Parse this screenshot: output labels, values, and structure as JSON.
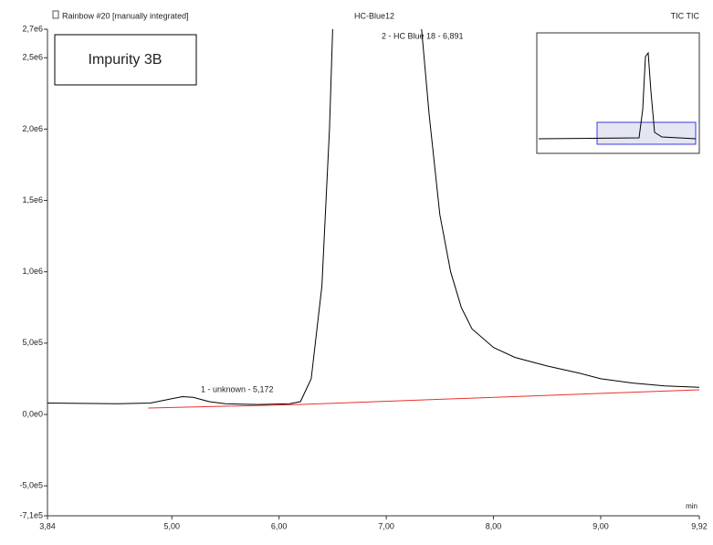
{
  "chart_data": {
    "type": "line",
    "title": "HC-Blue12",
    "header_left": "Rainbow #20 [manually integrated]",
    "header_right": "TIC TIC",
    "sample_label": "Impurity 3B",
    "x_unit": "min",
    "annotations": [
      "1 - unknown - 5,172",
      "2 - HC Blue 18 - 6,891"
    ],
    "xlim": [
      3.84,
      9.92
    ],
    "ylim": [
      -710000,
      2700000
    ],
    "xticks": [
      {
        "value": 3.84,
        "label": "3,84"
      },
      {
        "value": 5,
        "label": "5,00"
      },
      {
        "value": 6,
        "label": "6,00"
      },
      {
        "value": 7,
        "label": "7,00"
      },
      {
        "value": 8,
        "label": "8,00"
      },
      {
        "value": 9,
        "label": "9,00"
      },
      {
        "value": 9.92,
        "label": "9,92"
      }
    ],
    "yticks": [
      {
        "value": 2700000,
        "label": "2,7e6"
      },
      {
        "value": 2500000,
        "label": "2,5e6"
      },
      {
        "value": 2000000,
        "label": "2,0e6"
      },
      {
        "value": 1500000,
        "label": "1,5e6"
      },
      {
        "value": 1000000,
        "label": "1,0e6"
      },
      {
        "value": 500000,
        "label": "5,0e5"
      },
      {
        "value": 0,
        "label": "0,0e0"
      },
      {
        "value": -500000,
        "label": "-5,0e5"
      },
      {
        "value": -710000,
        "label": "-7,1e5"
      }
    ],
    "series": [
      {
        "color": "#000000",
        "x": [
          3.84,
          4.5,
          4.8,
          5.0,
          5.1,
          5.2,
          5.35,
          5.5,
          5.8,
          6.1,
          6.2,
          6.3,
          6.4,
          6.47,
          6.5,
          6.9,
          7.33,
          7.4,
          7.5,
          7.6,
          7.7,
          7.8,
          8.0,
          8.2,
          8.5,
          8.8,
          9.0,
          9.3,
          9.6,
          9.92
        ],
        "values": [
          80000,
          75000,
          80000,
          110000,
          125000,
          120000,
          90000,
          75000,
          70000,
          75000,
          90000,
          250000,
          900000,
          2000000,
          2700000,
          null,
          2700000,
          2100000,
          1400000,
          1000000,
          750000,
          600000,
          470000,
          400000,
          340000,
          290000,
          250000,
          220000,
          200000,
          190000
        ]
      },
      {
        "color": "#e8322a",
        "x": [
          4.78,
          6.18,
          9.92
        ],
        "values": [
          45000,
          70000,
          173000
        ]
      }
    ]
  }
}
